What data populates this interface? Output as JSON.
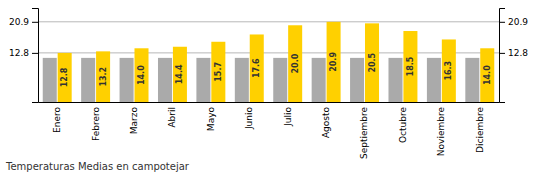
{
  "chart_data": {
    "type": "bar",
    "title": "Temperaturas Medias en campotejar",
    "categories": [
      "Enero",
      "Febrero",
      "Marzo",
      "Abril",
      "Mayo",
      "Junio",
      "Julio",
      "Agosto",
      "Septiembre",
      "Octubre",
      "Noviembre",
      "Diciembre"
    ],
    "series": [
      {
        "color": "#AAAAAA",
        "values": [
          11.5,
          11.5,
          11.5,
          11.5,
          11.5,
          11.5,
          11.5,
          11.5,
          11.5,
          11.5,
          11.5,
          11.5
        ]
      },
      {
        "color": "#FFD000",
        "values": [
          12.8,
          13.2,
          14.0,
          14.4,
          15.7,
          17.6,
          20.0,
          20.9,
          20.5,
          18.5,
          16.3,
          14.0
        ],
        "data_labels": true,
        "value_labels": [
          "12.8",
          "13.2",
          "14.0",
          "14.4",
          "15.7",
          "17.6",
          "20.0",
          "20.9",
          "20.5",
          "18.5",
          "16.3",
          "14.0"
        ]
      }
    ],
    "ylim": [
      0,
      24.5
    ],
    "yticks": [
      12.8,
      20.9
    ],
    "grid": true
  }
}
